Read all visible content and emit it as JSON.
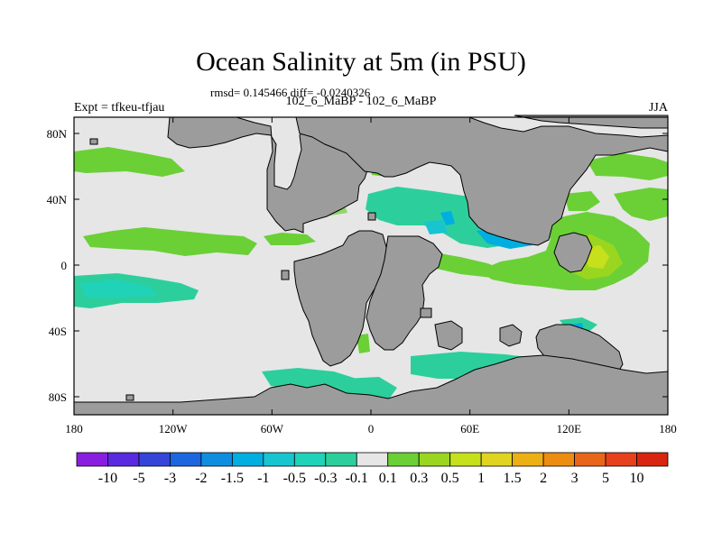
{
  "title": "Ocean Salinity at 5m (in PSU)",
  "stats": "rmsd= 0.145466 diff= -0.0240326",
  "comparison": "102_6_MaBP - 102_6_MaBP",
  "experiment": "Expt = tfkeu-tfjau",
  "season": "JJA",
  "axes": {
    "x_ticks": [
      "180",
      "120W",
      "60W",
      "0",
      "60E",
      "120E",
      "180"
    ],
    "y_ticks": [
      "80N",
      "40N",
      "0",
      "40S",
      "80S"
    ]
  },
  "colorbar": {
    "labels": [
      "-10",
      "-5",
      "-3",
      "-2",
      "-1.5",
      "-1",
      "-0.5",
      "-0.3",
      "-0.1",
      "0.1",
      "0.3",
      "0.5",
      "1",
      "1.5",
      "2",
      "3",
      "5",
      "10"
    ],
    "colors": [
      "#8a1ee0",
      "#5a2ae0",
      "#3445d8",
      "#1c66e0",
      "#0f8ee0",
      "#00aee0",
      "#18c4d0",
      "#20d2b8",
      "#2ccf9c",
      "#e6e6e6",
      "#6ad036",
      "#9ad620",
      "#c6e01c",
      "#e0d420",
      "#ecb014",
      "#ec8c10",
      "#e8661a",
      "#e6401c",
      "#d82410"
    ]
  },
  "colors": {
    "land": "#9c9c9c",
    "ocean_neutral": "#e6e6e6"
  }
}
